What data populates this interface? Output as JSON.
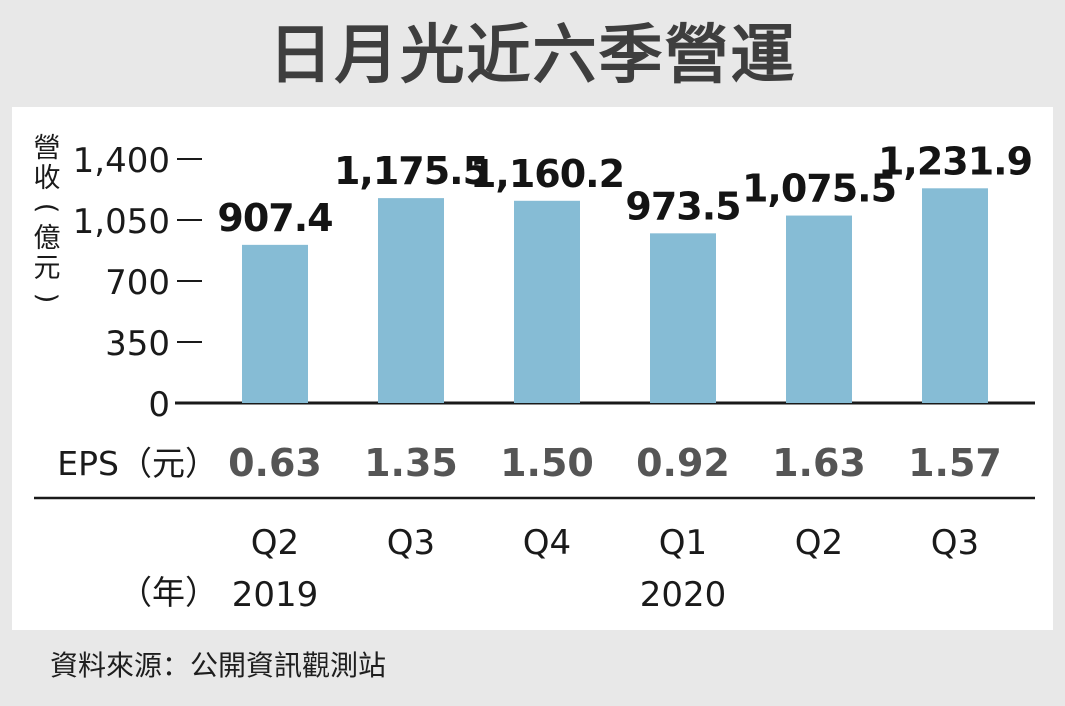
{
  "title": "日月光近六季營運",
  "source": "資料來源：公開資訊觀測站",
  "chart_data": {
    "type": "bar",
    "ylabel": "營收(億元)",
    "ylim": [
      0,
      1400
    ],
    "yticks": [
      "0",
      "350",
      "700",
      "1,050",
      "1,400"
    ],
    "ytick_values": [
      0,
      350,
      700,
      1050,
      1400
    ],
    "categories": [
      "Q2",
      "Q3",
      "Q4",
      "Q1",
      "Q2",
      "Q3"
    ],
    "years": [
      {
        "label": "2019",
        "at_index": 0
      },
      {
        "label": "2020",
        "at_index": 3
      }
    ],
    "year_axis_label": "（年）",
    "values": [
      907.4,
      1175.5,
      1160.2,
      973.5,
      1075.5,
      1231.9
    ],
    "value_labels": [
      "907.4",
      "1,175.5",
      "1,160.2",
      "973.5",
      "1,075.5",
      "1,231.9"
    ],
    "eps_label": "EPS（元）",
    "eps": [
      "0.63",
      "1.35",
      "1.50",
      "0.92",
      "1.63",
      "1.57"
    ],
    "bar_color": "#86bcd5",
    "grid": false
  }
}
